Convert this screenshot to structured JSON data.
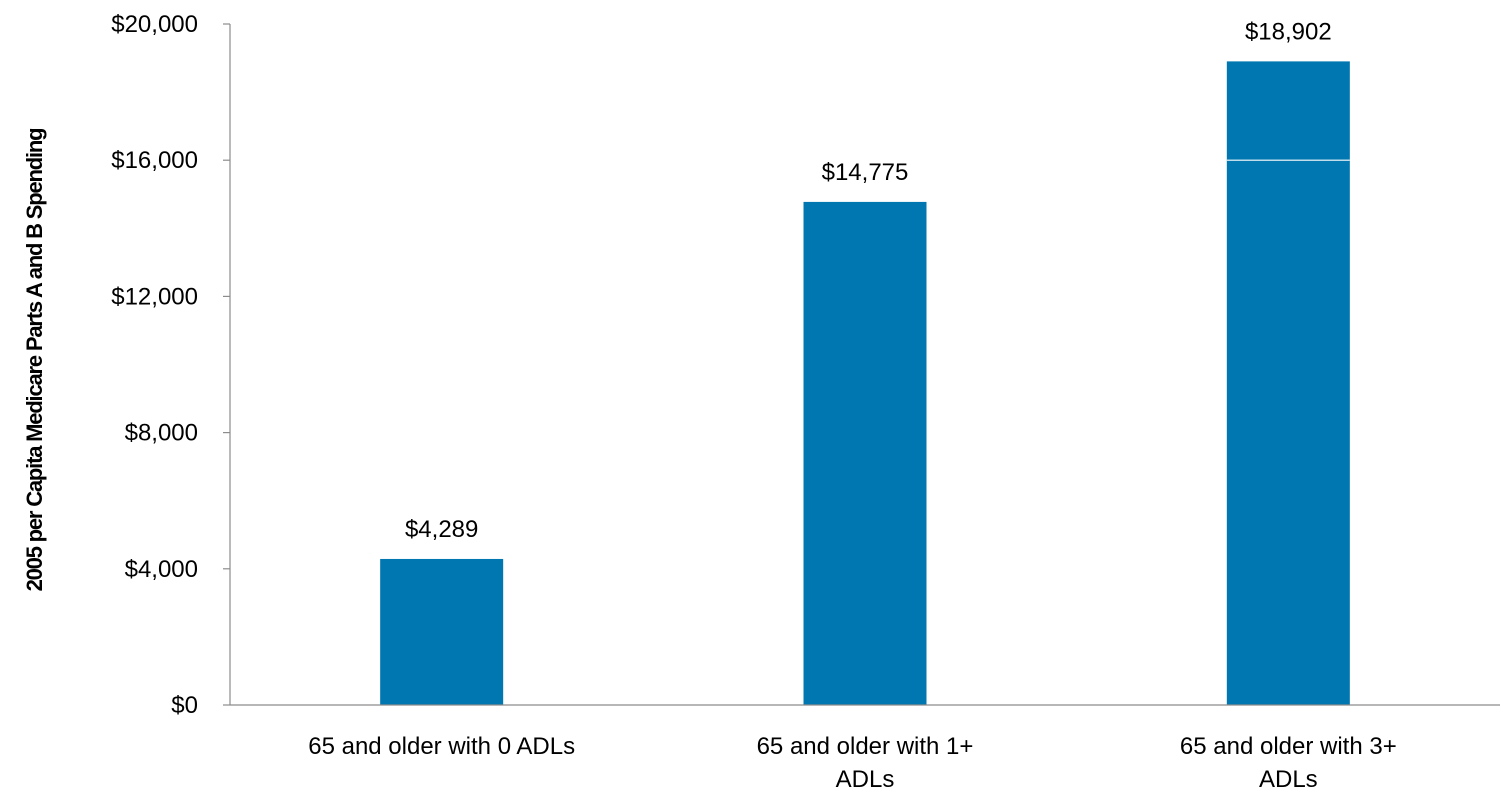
{
  "chart_data": {
    "type": "bar",
    "title": "",
    "xlabel": "",
    "ylabel": "2005 per Capita Medicare Parts A and B Spending",
    "categories": [
      [
        "65 and older with 0 ADLs"
      ],
      [
        "65 and older with 1+",
        "ADLs"
      ],
      [
        "65 and older with 3+",
        "ADLs"
      ]
    ],
    "values": [
      4289,
      14775,
      18902
    ],
    "value_labels": [
      "$4,289",
      "$14,775",
      "$18,902"
    ],
    "yticks": [
      0,
      4000,
      8000,
      12000,
      16000,
      20000
    ],
    "ytick_labels": [
      "$0",
      "$4,000",
      "$8,000",
      "$12,000",
      "$16,000",
      "$20,000"
    ],
    "ylim": [
      0,
      20000
    ],
    "grid": false,
    "legend": "none",
    "bar_color": "#0077b0",
    "gridline_over_bars": 16000
  }
}
